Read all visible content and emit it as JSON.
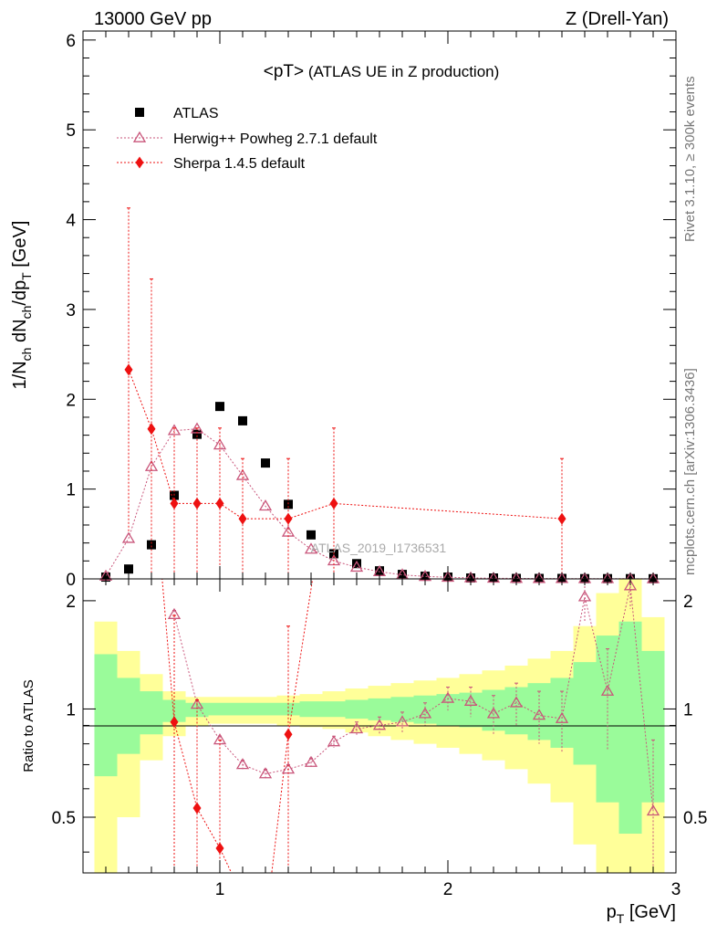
{
  "header": {
    "left": "13000 GeV pp",
    "right": "Z (Drell-Yan)"
  },
  "side_labels": {
    "rivet": "Rivet 3.1.10, ≥ 300k events",
    "mcplots": "mcplots.cern.ch [arXiv:1306.3436]"
  },
  "watermark": "ATLAS_2019_I1736531",
  "colors": {
    "data": "#000000",
    "herwig": "#c9567b",
    "sherpa": "#ee1111",
    "band_inner": "#9afb9a",
    "band_outer": "#ffff99"
  },
  "chart_data": [
    {
      "type": "scatter",
      "panel": "main",
      "title_main": "<pT>",
      "title_sub": " (ATLAS UE in Z production)",
      "ylabel": "1/N_ch dN_ch/dp_T [GeV]",
      "xlim": [
        0.4,
        3.0
      ],
      "ylim": [
        0,
        6.1
      ],
      "yticks": [
        0,
        1,
        2,
        3,
        4,
        5,
        6
      ],
      "legend_position": "top-left",
      "series": [
        {
          "name": "ATLAS",
          "marker": "square",
          "x": [
            0.5,
            0.6,
            0.7,
            0.8,
            0.9,
            1.0,
            1.1,
            1.2,
            1.3,
            1.4,
            1.5,
            1.6,
            1.7,
            1.8,
            1.9,
            2.0,
            2.1,
            2.2,
            2.3,
            2.4,
            2.5,
            2.6,
            2.7,
            2.8,
            2.9
          ],
          "y": [
            0.02,
            0.11,
            0.38,
            0.93,
            1.61,
            1.92,
            1.76,
            1.29,
            0.83,
            0.49,
            0.28,
            0.17,
            0.09,
            0.05,
            0.03,
            0.02,
            0.01,
            0.01,
            0.005,
            0.005,
            0.005,
            0.003,
            0.003,
            0.003,
            0.002
          ]
        },
        {
          "name": "Herwig++ Powheg 2.7.1 default",
          "marker": "triangle-open",
          "x": [
            0.5,
            0.6,
            0.7,
            0.8,
            0.9,
            1.0,
            1.1,
            1.2,
            1.3,
            1.4,
            1.5,
            1.6,
            1.7,
            1.8,
            1.9,
            2.0,
            2.1,
            2.2,
            2.3,
            2.4,
            2.5,
            2.6,
            2.7,
            2.8,
            2.9
          ],
          "y": [
            0.03,
            0.45,
            1.25,
            1.65,
            1.67,
            1.49,
            1.15,
            0.81,
            0.52,
            0.33,
            0.2,
            0.13,
            0.08,
            0.045,
            0.027,
            0.018,
            0.011,
            0.007,
            0.005,
            0.004,
            0.003,
            0.002,
            0.002,
            0.002,
            0.001
          ]
        },
        {
          "name": "Sherpa 1.4.5 default",
          "marker": "diamond",
          "x": [
            0.6,
            0.7,
            0.8,
            0.9,
            1.0,
            1.1,
            1.3,
            1.5,
            2.5
          ],
          "y": [
            2.33,
            1.67,
            0.84,
            0.84,
            0.84,
            0.67,
            0.67,
            0.84,
            0.67
          ],
          "yerr": [
            1.8,
            1.67,
            0.84,
            0.84,
            0.84,
            0.67,
            0.67,
            0.84,
            0.67
          ]
        }
      ]
    },
    {
      "type": "scatter",
      "panel": "ratio",
      "ylabel": "Ratio to ATLAS",
      "xlabel": "p_T [GeV]",
      "xlim": [
        0.4,
        3.0
      ],
      "ylim": [
        0.35,
        2.3
      ],
      "yticks": [
        0.5,
        1,
        2
      ],
      "xticks": [
        1,
        2,
        3
      ],
      "band_edges": [
        0.45,
        0.55,
        0.65,
        0.75,
        0.85,
        0.95,
        1.05,
        1.15,
        1.25,
        1.35,
        1.45,
        1.55,
        1.65,
        1.75,
        1.85,
        1.95,
        2.05,
        2.15,
        2.25,
        2.35,
        2.45,
        2.55,
        2.65,
        2.75,
        2.85,
        2.95
      ],
      "band_inner": [
        [
          0.65,
          1.42
        ],
        [
          0.75,
          1.22
        ],
        [
          0.85,
          1.12
        ],
        [
          0.92,
          1.06
        ],
        [
          0.95,
          1.04
        ],
        [
          0.96,
          1.04
        ],
        [
          0.96,
          1.04
        ],
        [
          0.96,
          1.04
        ],
        [
          0.96,
          1.04
        ],
        [
          0.95,
          1.05
        ],
        [
          0.95,
          1.05
        ],
        [
          0.94,
          1.06
        ],
        [
          0.93,
          1.07
        ],
        [
          0.92,
          1.08
        ],
        [
          0.91,
          1.09
        ],
        [
          0.9,
          1.1
        ],
        [
          0.89,
          1.11
        ],
        [
          0.87,
          1.13
        ],
        [
          0.85,
          1.15
        ],
        [
          0.82,
          1.18
        ],
        [
          0.78,
          1.22
        ],
        [
          0.7,
          1.35
        ],
        [
          0.55,
          1.6
        ],
        [
          0.45,
          1.75
        ],
        [
          0.55,
          1.45
        ]
      ],
      "band_outer": [
        [
          0.2,
          1.75
        ],
        [
          0.5,
          1.45
        ],
        [
          0.72,
          1.25
        ],
        [
          0.84,
          1.12
        ],
        [
          0.9,
          1.08
        ],
        [
          0.91,
          1.08
        ],
        [
          0.91,
          1.08
        ],
        [
          0.91,
          1.08
        ],
        [
          0.9,
          1.09
        ],
        [
          0.89,
          1.1
        ],
        [
          0.88,
          1.12
        ],
        [
          0.86,
          1.14
        ],
        [
          0.84,
          1.16
        ],
        [
          0.82,
          1.18
        ],
        [
          0.8,
          1.2
        ],
        [
          0.78,
          1.22
        ],
        [
          0.75,
          1.25
        ],
        [
          0.72,
          1.28
        ],
        [
          0.68,
          1.32
        ],
        [
          0.62,
          1.38
        ],
        [
          0.55,
          1.45
        ],
        [
          0.42,
          1.7
        ],
        [
          0.25,
          2.1
        ],
        [
          0.2,
          2.3
        ],
        [
          0.3,
          1.8
        ]
      ],
      "series": [
        {
          "name": "Herwig++ Powheg 2.7.1 default",
          "marker": "triangle-open",
          "x": [
            0.8,
            0.9,
            1.0,
            1.1,
            1.2,
            1.3,
            1.4,
            1.5,
            1.6,
            1.7,
            1.8,
            1.9,
            2.0,
            2.1,
            2.2,
            2.3,
            2.4,
            2.5,
            2.6,
            2.7,
            2.8,
            2.9
          ],
          "y": [
            1.83,
            1.03,
            0.82,
            0.7,
            0.66,
            0.68,
            0.71,
            0.81,
            0.88,
            0.9,
            0.92,
            0.97,
            1.07,
            1.05,
            0.97,
            1.04,
            0.96,
            0.94,
            2.05,
            1.12,
            2.2,
            0.52
          ],
          "yerr": [
            0.05,
            0.02,
            0.02,
            0.02,
            0.02,
            0.02,
            0.02,
            0.03,
            0.04,
            0.05,
            0.06,
            0.07,
            0.08,
            0.1,
            0.12,
            0.14,
            0.16,
            0.18,
            0.3,
            0.35,
            0.3,
            0.3
          ]
        },
        {
          "name": "Sherpa 1.4.5 default",
          "marker": "diamond",
          "x": [
            0.8,
            0.9,
            1.0,
            1.3
          ],
          "y": [
            0.92,
            0.53,
            0.41,
            0.85
          ],
          "yerr": [
            0.9,
            0.53,
            0.41,
            0.85
          ]
        }
      ]
    }
  ]
}
